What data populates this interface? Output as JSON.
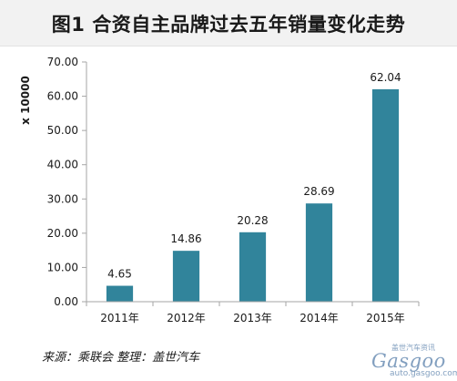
{
  "title": "图1  合资自主品牌过去五年销量变化走势",
  "source_note": "来源：乘联会   整理：盖世汽车",
  "watermark": {
    "logo_text": "Gasgoo",
    "cn_text": "盖世汽车资讯",
    "url": "auto.gasgoo.com"
  },
  "colors": {
    "bar": "#31849b",
    "axis": "#a6a6a6",
    "grid": "#d9d9d9"
  },
  "chart_data": {
    "type": "bar",
    "title": "图1  合资自主品牌过去五年销量变化走势",
    "categories": [
      "2011年",
      "2012年",
      "2013年",
      "2014年",
      "2015年"
    ],
    "values": [
      4.65,
      14.86,
      20.28,
      28.69,
      62.04
    ],
    "value_labels": [
      "4.65",
      "14.86",
      "20.28",
      "28.69",
      "62.04"
    ],
    "ylabel": "x 10000",
    "xlabel": "",
    "ylim": [
      0,
      70
    ],
    "yticks": [
      "0.00",
      "10.00",
      "20.00",
      "30.00",
      "40.00",
      "50.00",
      "60.00",
      "70.00"
    ],
    "grid": false,
    "legend": "none"
  }
}
